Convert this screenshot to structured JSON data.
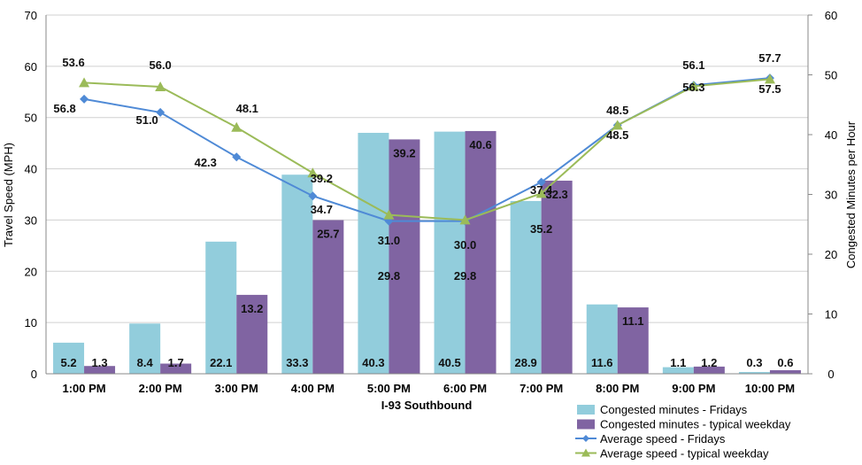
{
  "chart_data": {
    "type": "bar+line",
    "xlabel": "I-93 Southbound",
    "ylabel_left": "Travel Speed (MPH)",
    "ylabel_right": "Congested Minutes per Hour",
    "ylim_left": [
      0,
      70
    ],
    "ylim_right": [
      0,
      60
    ],
    "yticks_left": [
      0,
      10,
      20,
      30,
      40,
      50,
      60,
      70
    ],
    "yticks_right": [
      0,
      10,
      20,
      30,
      40,
      50,
      60
    ],
    "grid": true,
    "legend_position": "bottom-right",
    "categories": [
      "1:00 PM",
      "2:00 PM",
      "3:00 PM",
      "4:00 PM",
      "5:00 PM",
      "6:00 PM",
      "7:00 PM",
      "8:00 PM",
      "9:00 PM",
      "10:00 PM"
    ],
    "series": [
      {
        "name": "Congested minutes - Fridays",
        "type": "bar",
        "axis": "right",
        "color": "#92CDDC",
        "values": [
          5.2,
          8.4,
          22.1,
          33.3,
          40.3,
          40.5,
          28.9,
          11.6,
          1.1,
          0.3
        ]
      },
      {
        "name": "Congested minutes - typical weekday",
        "type": "bar",
        "axis": "right",
        "color": "#8064A2",
        "values": [
          1.3,
          1.7,
          13.2,
          25.7,
          39.2,
          40.6,
          32.3,
          11.1,
          1.2,
          0.6
        ]
      },
      {
        "name": "Average speed - Fridays",
        "type": "line",
        "axis": "left",
        "color": "#4F8AD6",
        "marker": "diamond",
        "values": [
          53.6,
          51.0,
          42.3,
          34.7,
          29.8,
          29.8,
          37.4,
          48.5,
          56.3,
          57.7
        ]
      },
      {
        "name": "Average speed - typical weekday",
        "type": "line",
        "axis": "left",
        "color": "#9BBB59",
        "marker": "triangle",
        "values": [
          56.8,
          56.0,
          48.1,
          39.2,
          31.0,
          30.0,
          35.2,
          48.5,
          56.1,
          57.5
        ]
      }
    ]
  }
}
